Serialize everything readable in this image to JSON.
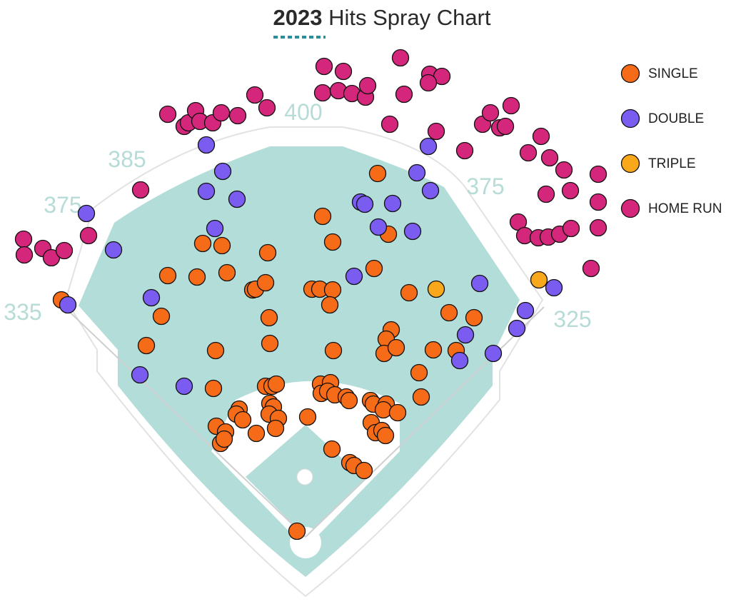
{
  "chart_data": {
    "type": "scatter",
    "title_year": "2023",
    "title": "Hits Spray Chart",
    "distance_labels": [
      400,
      385,
      375,
      375,
      335,
      325
    ],
    "xlim": [
      0,
      1024
    ],
    "ylim": [
      853,
      0
    ],
    "series": [
      {
        "name": "SINGLE",
        "color": "#f56b17",
        "x": [
          86,
          226,
          205,
          235,
          276,
          318,
          284,
          311,
          375,
          354,
          358,
          372,
          377,
          378,
          302,
          299,
          372,
          381,
          387,
          378,
          383,
          377,
          390,
          335,
          331,
          340,
          303,
          316,
          309,
          314,
          359,
          386,
          431,
          452,
          466,
          437,
          448,
          466,
          462,
          467,
          449,
          463,
          450,
          459,
          469,
          485,
          489,
          529,
          524,
          544,
          573,
          548,
          541,
          538,
          555,
          629,
          664,
          607,
          639,
          587,
          590,
          519,
          523,
          541,
          537,
          557,
          520,
          526,
          535,
          540,
          465,
          490,
          496,
          510,
          416
        ],
        "y": [
          420,
          443,
          484,
          386,
          388,
          382,
          341,
          344,
          354,
          406,
          405,
          396,
          445,
          481,
          491,
          544,
          541,
          541,
          538,
          565,
          570,
          580,
          586,
          573,
          580,
          588,
          597,
          605,
          621,
          615,
          607,
          600,
          584,
          303,
          339,
          405,
          405,
          406,
          427,
          491,
          538,
          536,
          551,
          548,
          553,
          556,
          561,
          243,
          376,
          328,
          410,
          462,
          475,
          495,
          487,
          438,
          445,
          490,
          491,
          522,
          556,
          561,
          566,
          566,
          574,
          578,
          592,
          606,
          603,
          610,
          629,
          648,
          652,
          659,
          744
        ]
      },
      {
        "name": "DOUBLE",
        "color": "#7a5cf0",
        "x": [
          121,
          159,
          95,
          212,
          196,
          258,
          289,
          312,
          289,
          332,
          301,
          505,
          511,
          550,
          530,
          578,
          584,
          603,
          600,
          496,
          672,
          652,
          644,
          691,
          724,
          736,
          776
        ],
        "y": [
          299,
          350,
          427,
          417,
          525,
          541,
          203,
          240,
          268,
          279,
          320,
          283,
          286,
          285,
          318,
          324,
          242,
          267,
          205,
          387,
          397,
          469,
          505,
          495,
          460,
          435,
          403
        ]
      },
      {
        "name": "TRIPLE",
        "color": "#f9a81b",
        "x": [
          611,
          755
        ],
        "y": [
          405,
          392
        ]
      },
      {
        "name": "HOME RUN",
        "color": "#d4267a",
        "x": [
          33,
          34,
          60,
          72,
          90,
          124,
          197,
          235,
          258,
          264,
          274,
          280,
          298,
          310,
          333,
          357,
          374,
          454,
          481,
          452,
          474,
          493,
          512,
          515,
          546,
          561,
          566,
          602,
          619,
          600,
          611,
          651,
          676,
          687,
          700,
          708,
          716,
          740,
          758,
          770,
          790,
          838,
          799,
          765,
          838,
          726,
          735,
          754,
          768,
          784,
          800,
          838,
          828
        ],
        "y": [
          335,
          357,
          348,
          361,
          351,
          330,
          266,
          160,
          177,
          172,
          155,
          170,
          172,
          158,
          162,
          133,
          151,
          93,
          100,
          130,
          127,
          131,
          136,
          120,
          174,
          81,
          132,
          104,
          107,
          116,
          184,
          211,
          174,
          158,
          179,
          177,
          148,
          214,
          191,
          221,
          238,
          244,
          267,
          272,
          283,
          311,
          330,
          333,
          332,
          328,
          320,
          319,
          376
        ]
      }
    ]
  }
}
